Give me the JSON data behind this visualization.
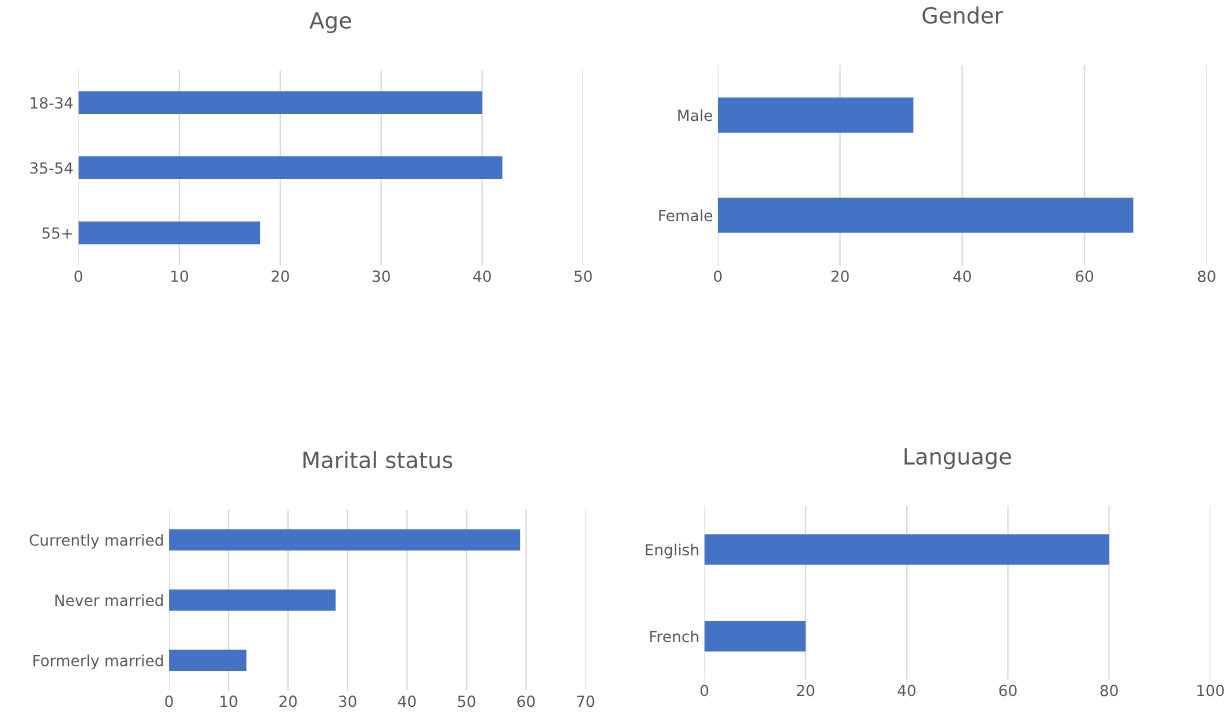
{
  "chart_data": [
    {
      "type": "bar",
      "orientation": "horizontal",
      "title": "Age",
      "categories": [
        "18-34",
        "35-54",
        "55+"
      ],
      "values": [
        40,
        42,
        18
      ],
      "color": "#4472c4",
      "xlim": [
        0,
        50
      ],
      "xticks": [
        0,
        10,
        20,
        30,
        40,
        50
      ],
      "grid": "x"
    },
    {
      "type": "bar",
      "orientation": "horizontal",
      "title": "Gender",
      "categories": [
        "Male",
        "Female"
      ],
      "values": [
        32,
        68
      ],
      "color": "#4472c4",
      "xlim": [
        0,
        80
      ],
      "xticks": [
        0,
        20,
        40,
        60,
        80
      ],
      "grid": "x"
    },
    {
      "type": "bar",
      "orientation": "horizontal",
      "title": "Marital status",
      "categories": [
        "Currently married",
        "Never married",
        "Formerly married"
      ],
      "values": [
        59,
        28,
        13
      ],
      "color": "#4472c4",
      "xlim": [
        0,
        70
      ],
      "xticks": [
        0,
        10,
        20,
        30,
        40,
        50,
        60,
        70
      ],
      "grid": "x"
    },
    {
      "type": "bar",
      "orientation": "horizontal",
      "title": "Language",
      "categories": [
        "English",
        "French"
      ],
      "values": [
        80,
        20
      ],
      "color": "#4472c4",
      "xlim": [
        0,
        100
      ],
      "xticks": [
        0,
        20,
        40,
        60,
        80,
        100
      ],
      "grid": "x"
    }
  ]
}
